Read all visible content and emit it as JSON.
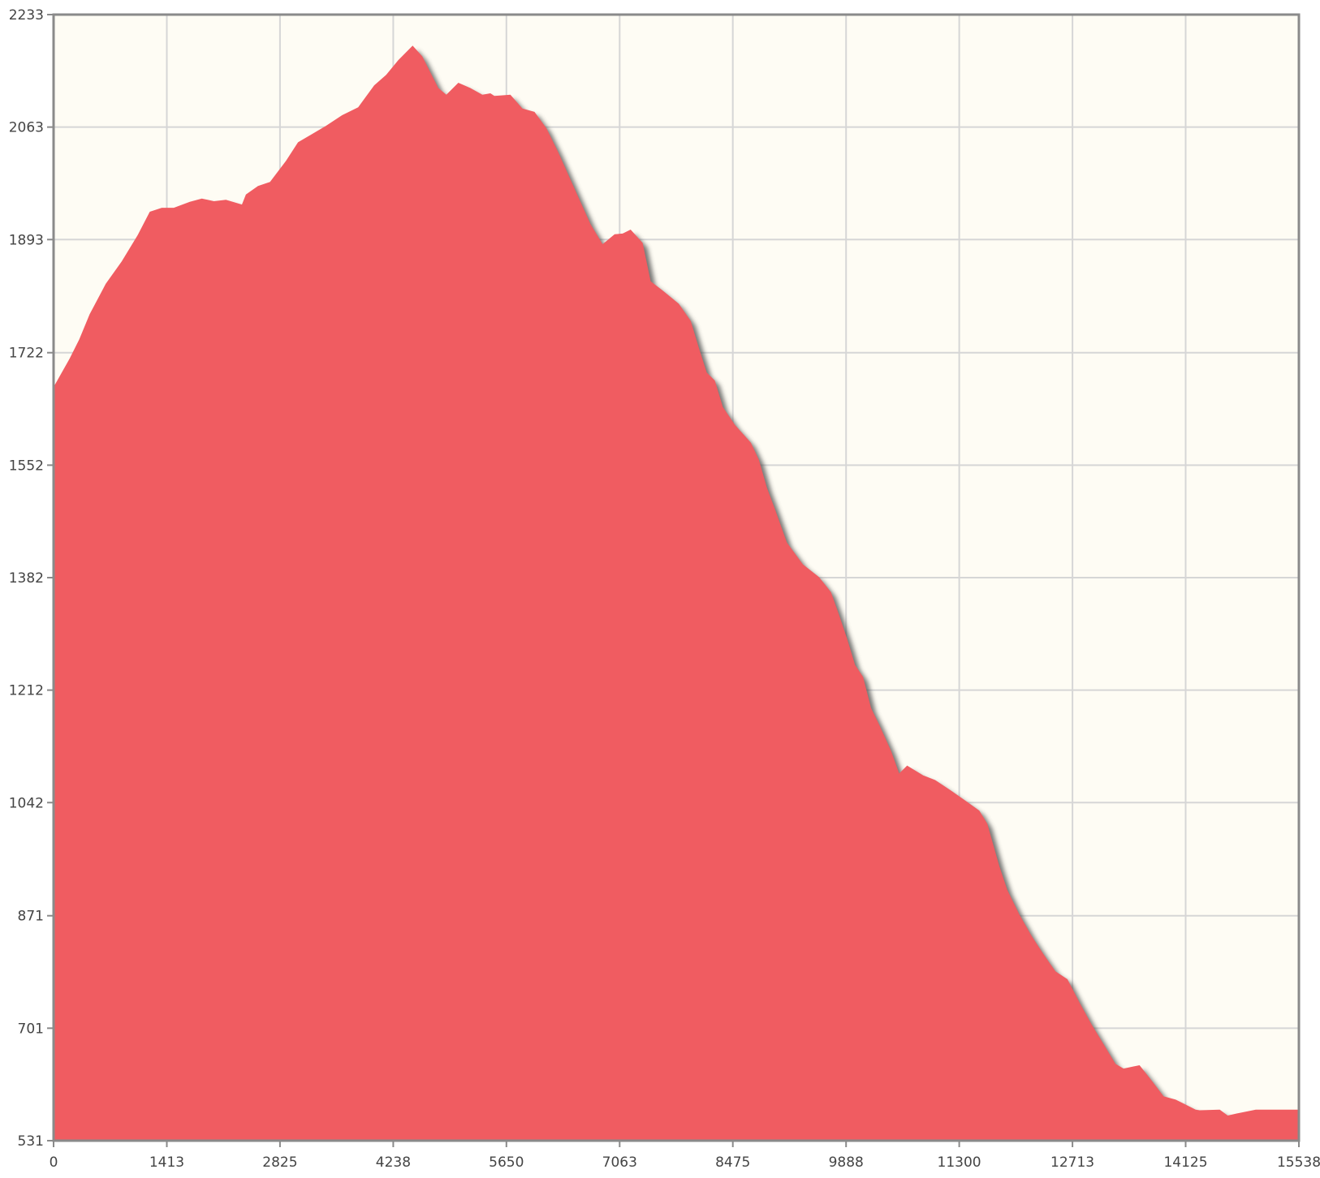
{
  "chart_data": {
    "type": "area",
    "title": "",
    "xlabel": "",
    "ylabel": "",
    "xlim": [
      0,
      15538
    ],
    "ylim": [
      531,
      2233
    ],
    "grid": true,
    "legend": "none",
    "x_ticks": [
      0,
      1413,
      2825,
      4238,
      5650,
      7063,
      8475,
      9888,
      11300,
      12713,
      14125,
      15538
    ],
    "y_ticks": [
      531,
      701,
      871,
      1042,
      1212,
      1382,
      1552,
      1722,
      1893,
      2063,
      2233
    ],
    "series": [
      {
        "points": [
          [
            0,
            1670
          ],
          [
            200,
            1713
          ],
          [
            320,
            1742
          ],
          [
            450,
            1780
          ],
          [
            650,
            1826
          ],
          [
            850,
            1860
          ],
          [
            1050,
            1900
          ],
          [
            1200,
            1935
          ],
          [
            1350,
            1941
          ],
          [
            1500,
            1941
          ],
          [
            1700,
            1950
          ],
          [
            1850,
            1955
          ],
          [
            2000,
            1951
          ],
          [
            2150,
            1953
          ],
          [
            2350,
            1946
          ],
          [
            2400,
            1961
          ],
          [
            2550,
            1974
          ],
          [
            2700,
            1980
          ],
          [
            2900,
            2012
          ],
          [
            3050,
            2040
          ],
          [
            3400,
            2065
          ],
          [
            3600,
            2081
          ],
          [
            3800,
            2093
          ],
          [
            4000,
            2126
          ],
          [
            4150,
            2142
          ],
          [
            4300,
            2164
          ],
          [
            4480,
            2186
          ],
          [
            4600,
            2170
          ],
          [
            4800,
            2122
          ],
          [
            4900,
            2112
          ],
          [
            5050,
            2130
          ],
          [
            5200,
            2122
          ],
          [
            5350,
            2112
          ],
          [
            5450,
            2114
          ],
          [
            5500,
            2110
          ],
          [
            5600,
            2111
          ],
          [
            5700,
            2112
          ],
          [
            5850,
            2091
          ],
          [
            6000,
            2086
          ],
          [
            6150,
            2061
          ],
          [
            6300,
            2024
          ],
          [
            6500,
            1970
          ],
          [
            6700,
            1916
          ],
          [
            6850,
            1886
          ],
          [
            7000,
            1901
          ],
          [
            7100,
            1902
          ],
          [
            7200,
            1908
          ],
          [
            7350,
            1888
          ],
          [
            7450,
            1830
          ],
          [
            7600,
            1816
          ],
          [
            7800,
            1796
          ],
          [
            7950,
            1770
          ],
          [
            8050,
            1730
          ],
          [
            8150,
            1692
          ],
          [
            8250,
            1680
          ],
          [
            8350,
            1640
          ],
          [
            8500,
            1613
          ],
          [
            8700,
            1586
          ],
          [
            8800,
            1560
          ],
          [
            8900,
            1518
          ],
          [
            9000,
            1486
          ],
          [
            9150,
            1435
          ],
          [
            9350,
            1402
          ],
          [
            9550,
            1383
          ],
          [
            9700,
            1360
          ],
          [
            9800,
            1326
          ],
          [
            9900,
            1290
          ],
          [
            10000,
            1250
          ],
          [
            10100,
            1232
          ],
          [
            10200,
            1185
          ],
          [
            10300,
            1160
          ],
          [
            10450,
            1120
          ],
          [
            10550,
            1086
          ],
          [
            10650,
            1098
          ],
          [
            10850,
            1083
          ],
          [
            11000,
            1076
          ],
          [
            11200,
            1060
          ],
          [
            11400,
            1043
          ],
          [
            11550,
            1030
          ],
          [
            11650,
            1010
          ],
          [
            11800,
            946
          ],
          [
            11900,
            910
          ],
          [
            12050,
            873
          ],
          [
            12200,
            841
          ],
          [
            12350,
            813
          ],
          [
            12500,
            787
          ],
          [
            12650,
            775
          ],
          [
            12800,
            740
          ],
          [
            12950,
            707
          ],
          [
            13100,
            677
          ],
          [
            13250,
            647
          ],
          [
            13350,
            640
          ],
          [
            13550,
            645
          ],
          [
            13700,
            622
          ],
          [
            13850,
            598
          ],
          [
            14000,
            593
          ],
          [
            14100,
            587
          ],
          [
            14250,
            578
          ],
          [
            14300,
            577
          ],
          [
            14550,
            578
          ],
          [
            14650,
            569
          ],
          [
            14800,
            573
          ],
          [
            15000,
            578
          ],
          [
            15538,
            578
          ]
        ]
      }
    ],
    "colors": {
      "area": "#f05c61",
      "shadow": "#4a4a4a",
      "plot_background": "#fefcf4",
      "grid": "#d6d6d6",
      "axis": "#8a8a8a"
    }
  }
}
